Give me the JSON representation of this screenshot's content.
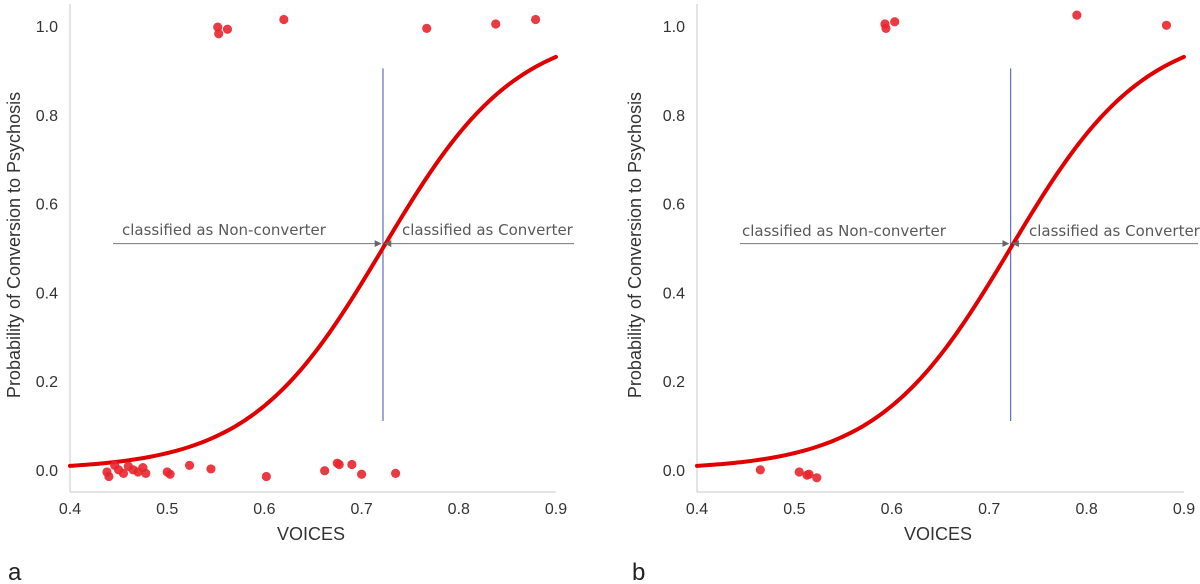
{
  "chart_data": [
    {
      "panel_label": "a",
      "type": "scatter",
      "xlabel": "VOICES",
      "ylabel": "Probability of Conversion to Psychosis",
      "xlim": [
        0.4,
        0.9
      ],
      "ylim": [
        -0.05,
        1.05
      ],
      "xticks": [
        "0.4",
        "0.5",
        "0.6",
        "0.7",
        "0.8",
        "0.9"
      ],
      "yticks": [
        "0.0",
        "0.2",
        "0.4",
        "0.6",
        "0.8",
        "1.0"
      ],
      "points_color": "#e8262d",
      "curve_color": "#e00000",
      "threshold_color": "#5b6fc4",
      "threshold_x": 0.722,
      "threshold_ymax": 0.905,
      "logistic": {
        "midpoint": 0.722,
        "slope": 14.6
      },
      "annotation_left": "classified as Non-converter",
      "annotation_right": "classified as Converter",
      "annotation_y": 0.51,
      "points": [
        {
          "x": 0.438,
          "y": -0.005
        },
        {
          "x": 0.44,
          "y": -0.015
        },
        {
          "x": 0.446,
          "y": 0.01
        },
        {
          "x": 0.45,
          "y": 0.0
        },
        {
          "x": 0.455,
          "y": -0.008
        },
        {
          "x": 0.46,
          "y": 0.008
        },
        {
          "x": 0.465,
          "y": 0.0
        },
        {
          "x": 0.47,
          "y": -0.005
        },
        {
          "x": 0.475,
          "y": 0.005
        },
        {
          "x": 0.478,
          "y": -0.008
        },
        {
          "x": 0.5,
          "y": -0.005
        },
        {
          "x": 0.503,
          "y": -0.01
        },
        {
          "x": 0.523,
          "y": 0.01
        },
        {
          "x": 0.545,
          "y": 0.002
        },
        {
          "x": 0.602,
          "y": -0.015
        },
        {
          "x": 0.662,
          "y": -0.002
        },
        {
          "x": 0.675,
          "y": 0.015
        },
        {
          "x": 0.677,
          "y": 0.012
        },
        {
          "x": 0.69,
          "y": 0.012
        },
        {
          "x": 0.7,
          "y": -0.01
        },
        {
          "x": 0.735,
          "y": -0.008
        },
        {
          "x": 0.552,
          "y": 0.998
        },
        {
          "x": 0.553,
          "y": 0.983
        },
        {
          "x": 0.562,
          "y": 0.993
        },
        {
          "x": 0.62,
          "y": 1.015
        },
        {
          "x": 0.767,
          "y": 0.995
        },
        {
          "x": 0.838,
          "y": 1.005
        },
        {
          "x": 0.879,
          "y": 1.015
        }
      ]
    },
    {
      "panel_label": "b",
      "type": "scatter",
      "xlabel": "VOICES",
      "ylabel": "Probability of Conversion to Psychosis",
      "xlim": [
        0.4,
        0.9
      ],
      "ylim": [
        -0.05,
        1.05
      ],
      "xticks": [
        "0.4",
        "0.5",
        "0.6",
        "0.7",
        "0.8",
        "0.9"
      ],
      "yticks": [
        "0.0",
        "0.2",
        "0.4",
        "0.6",
        "0.8",
        "1.0"
      ],
      "points_color": "#e8262d",
      "curve_color": "#e00000",
      "threshold_color": "#5b6fc4",
      "threshold_x": 0.722,
      "threshold_ymax": 0.905,
      "logistic": {
        "midpoint": 0.722,
        "slope": 14.6
      },
      "annotation_left": "classified as Non-converter",
      "annotation_right": "classified as Converter",
      "annotation_y": 0.51,
      "points": [
        {
          "x": 0.465,
          "y": 0.0
        },
        {
          "x": 0.505,
          "y": -0.005
        },
        {
          "x": 0.513,
          "y": -0.012
        },
        {
          "x": 0.515,
          "y": -0.01
        },
        {
          "x": 0.523,
          "y": -0.018
        },
        {
          "x": 0.593,
          "y": 1.005
        },
        {
          "x": 0.594,
          "y": 0.995
        },
        {
          "x": 0.603,
          "y": 1.01
        },
        {
          "x": 0.79,
          "y": 1.025
        },
        {
          "x": 0.882,
          "y": 1.002
        }
      ]
    }
  ]
}
